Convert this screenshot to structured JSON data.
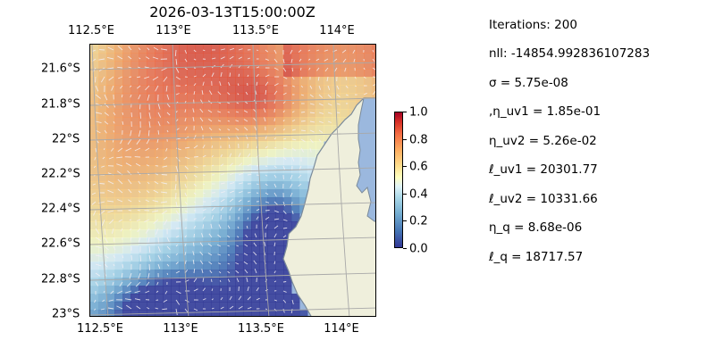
{
  "map": {
    "title": "2026-03-13T15:00:00Z",
    "lon_labels": [
      "112.5°E",
      "113°E",
      "113.5°E",
      "114°E"
    ],
    "lat_labels": [
      "21.6°S",
      "21.8°S",
      "22°S",
      "22.2°S",
      "22.4°S",
      "22.6°S",
      "22.8°S",
      "23°S"
    ],
    "lon_range": [
      112.5,
      114.2
    ],
    "lat_range": [
      -23.0,
      -21.5
    ],
    "gridlines": true,
    "colors": {
      "ocean": "#9bb8de",
      "land": "#efefdc",
      "coast": "#7a8a9a",
      "grid": "#a8a8a8"
    },
    "colormap": "RdYlBu_r",
    "field_overlay": "gridded field with vector arrows"
  },
  "colorbar": {
    "labels": [
      "0.0",
      "0.2",
      "0.4",
      "0.6",
      "0.8",
      "1.0"
    ],
    "range": [
      0,
      1
    ]
  },
  "stats": [
    "Iterations: 200",
    "nll: -14854.992836107283",
    "σ = 5.75e-08",
    ",η_uv1 = 1.85e-01",
    "η_uv2 = 5.26e-02",
    "ℓ_uv1 = 20301.77",
    "ℓ_uv2 = 10331.66",
    "η_q = 8.68e-06",
    "ℓ_q = 18717.57"
  ]
}
